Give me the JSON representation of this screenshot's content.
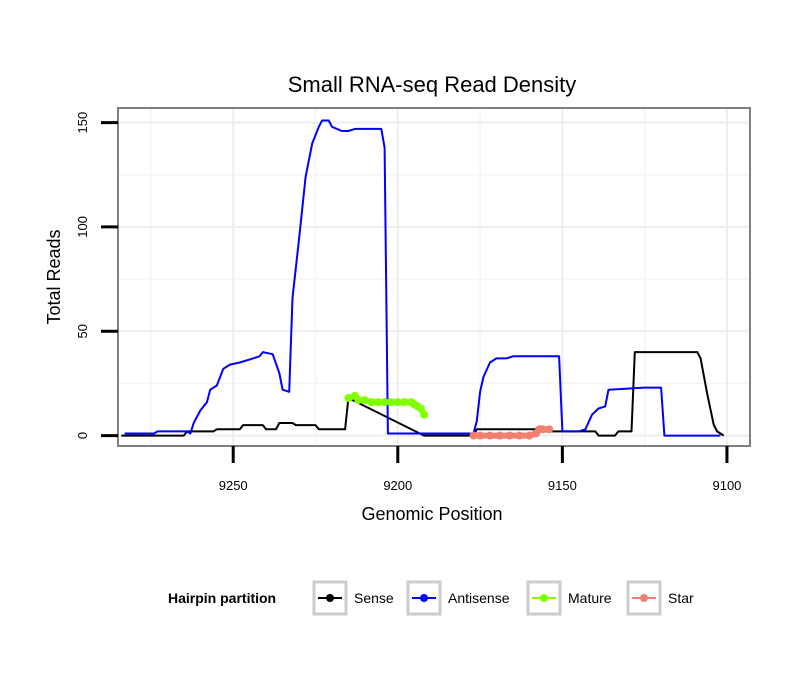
{
  "chart_data": {
    "type": "line",
    "title": "Small RNA-seq Read Density",
    "xlabel": "Genomic Position",
    "ylabel": "Total Reads",
    "xlim": [
      9285,
      9093
    ],
    "x_reversed": true,
    "ylim": [
      -5,
      157
    ],
    "xticks": [
      9250,
      9200,
      9150,
      9100
    ],
    "yticks": [
      0,
      50,
      100,
      150
    ],
    "grid": true,
    "legend": {
      "title": "Hairpin partition",
      "position": "bottom",
      "entries": [
        "Sense",
        "Antisense",
        "Mature",
        "Star"
      ]
    },
    "series": [
      {
        "name": "Sense",
        "color": "#000000",
        "marker": false,
        "points": [
          [
            9284,
            0
          ],
          [
            9265,
            0
          ],
          [
            9264,
            2
          ],
          [
            9256,
            2
          ],
          [
            9255,
            3
          ],
          [
            9248,
            3
          ],
          [
            9247,
            5
          ],
          [
            9241,
            5
          ],
          [
            9240,
            3
          ],
          [
            9237,
            3
          ],
          [
            9236,
            6
          ],
          [
            9232,
            6
          ],
          [
            9231,
            5
          ],
          [
            9225,
            5
          ],
          [
            9224,
            3
          ],
          [
            9216,
            3
          ],
          [
            9215,
            18
          ],
          [
            9192,
            0
          ],
          [
            9177,
            0
          ],
          [
            9176,
            3
          ],
          [
            9156,
            3
          ],
          [
            9155,
            2
          ],
          [
            9140,
            2
          ],
          [
            9139,
            0
          ],
          [
            9134,
            0
          ],
          [
            9133,
            2
          ],
          [
            9129,
            2
          ],
          [
            9128,
            40
          ],
          [
            9109,
            40
          ],
          [
            9108,
            37
          ],
          [
            9106,
            20
          ],
          [
            9104,
            5
          ],
          [
            9103,
            2
          ],
          [
            9101,
            0
          ]
        ]
      },
      {
        "name": "Antisense",
        "color": "#0000ff",
        "marker": false,
        "points": [
          [
            9283,
            1
          ],
          [
            9274,
            1
          ],
          [
            9273,
            2
          ],
          [
            9264,
            2
          ],
          [
            9263,
            1
          ],
          [
            9262,
            6
          ],
          [
            9260,
            12
          ],
          [
            9258,
            16
          ],
          [
            9257,
            22
          ],
          [
            9255,
            24
          ],
          [
            9253,
            32
          ],
          [
            9251,
            34
          ],
          [
            9248,
            35
          ],
          [
            9244,
            37
          ],
          [
            9242,
            38
          ],
          [
            9241,
            40
          ],
          [
            9238,
            39
          ],
          [
            9236,
            30
          ],
          [
            9235,
            22
          ],
          [
            9233,
            21
          ],
          [
            9232,
            66
          ],
          [
            9230,
            94
          ],
          [
            9228,
            124
          ],
          [
            9226,
            140
          ],
          [
            9224,
            148
          ],
          [
            9223,
            151
          ],
          [
            9221,
            151
          ],
          [
            9220,
            148
          ],
          [
            9217,
            146
          ],
          [
            9215,
            146
          ],
          [
            9213,
            147
          ],
          [
            9205,
            147
          ],
          [
            9204,
            138
          ],
          [
            9203,
            1
          ],
          [
            9192,
            1
          ],
          [
            9177,
            1
          ],
          [
            9176,
            7
          ],
          [
            9175,
            21
          ],
          [
            9174,
            28
          ],
          [
            9172,
            35
          ],
          [
            9170,
            37
          ],
          [
            9167,
            37
          ],
          [
            9165,
            38
          ],
          [
            9156,
            38
          ],
          [
            9151,
            38
          ],
          [
            9150,
            2
          ],
          [
            9145,
            2
          ],
          [
            9143,
            3
          ],
          [
            9141,
            10
          ],
          [
            9139,
            13
          ],
          [
            9137,
            14
          ],
          [
            9136,
            22
          ],
          [
            9125,
            23
          ],
          [
            9120,
            23
          ],
          [
            9119,
            0
          ],
          [
            9102,
            0
          ]
        ]
      },
      {
        "name": "Mature",
        "color": "#80ff00",
        "marker": true,
        "points": [
          [
            9215,
            18
          ],
          [
            9213,
            19
          ],
          [
            9212,
            17
          ],
          [
            9210,
            17
          ],
          [
            9208,
            16
          ],
          [
            9206,
            16
          ],
          [
            9204,
            16
          ],
          [
            9202,
            16
          ],
          [
            9200,
            16
          ],
          [
            9198,
            16
          ],
          [
            9196,
            16
          ],
          [
            9195,
            15
          ],
          [
            9194,
            14
          ],
          [
            9193,
            13
          ],
          [
            9192,
            10
          ]
        ]
      },
      {
        "name": "Star",
        "color": "#f08070",
        "marker": true,
        "points": [
          [
            9177,
            0
          ],
          [
            9175,
            0
          ],
          [
            9172,
            0
          ],
          [
            9169,
            0
          ],
          [
            9166,
            0
          ],
          [
            9163,
            0
          ],
          [
            9160,
            0
          ],
          [
            9158,
            1
          ],
          [
            9157,
            3
          ],
          [
            9156,
            3
          ],
          [
            9154,
            3
          ]
        ]
      }
    ]
  }
}
